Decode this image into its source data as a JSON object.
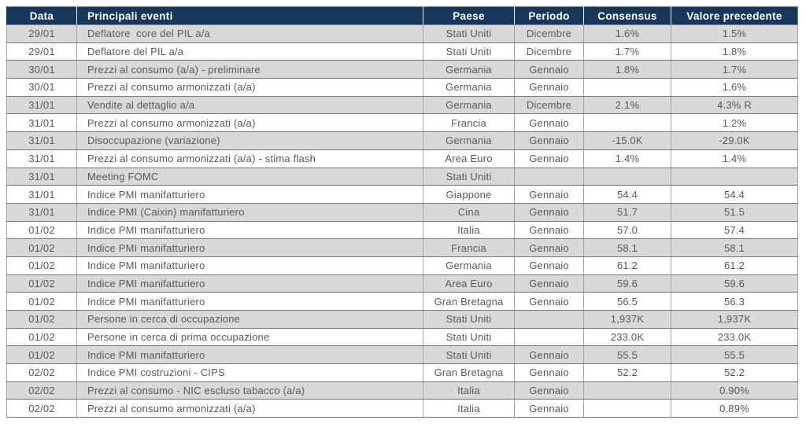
{
  "colors": {
    "header_bg": "#17375D",
    "header_text": "#FFFFFF",
    "row_alt_bg": "#D9D9D9",
    "row_bg": "#FFFFFF",
    "body_text": "#595959",
    "border": "#808080"
  },
  "table": {
    "columns": [
      {
        "key": "data",
        "label": "Data"
      },
      {
        "key": "evento",
        "label": "Principali eventi"
      },
      {
        "key": "paese",
        "label": "Paese"
      },
      {
        "key": "periodo",
        "label": "Periodo"
      },
      {
        "key": "consensus",
        "label": "Consensus"
      },
      {
        "key": "valore",
        "label": "Valore precedente"
      }
    ],
    "rows": [
      [
        "29/01",
        "Deflatore  core del PIL a/a",
        "Stati Uniti",
        "Dicembre",
        "1.6%",
        "1.5%"
      ],
      [
        "29/01",
        "Deflatore del PIL a/a",
        "Stati Uniti",
        "Dicembre",
        "1.7%",
        "1.8%"
      ],
      [
        "30/01",
        "Prezzi al consumo (a/a) - preliminare",
        "Germania",
        "Gennaio",
        "1.8%",
        "1.7%"
      ],
      [
        "30/01",
        "Prezzi al consumo armonizzati (a/a)",
        "Germania",
        "Gennaio",
        "",
        "1.6%"
      ],
      [
        "31/01",
        "Vendite al dettaglio a/a",
        "Germania",
        "Dicembre",
        "2.1%",
        "4.3% R"
      ],
      [
        "31/01",
        "Prezzi al consumo armonizzati (a/a)",
        "Francia",
        "Gennaio",
        "",
        "1.2%"
      ],
      [
        "31/01",
        "Disoccupazione (variazione)",
        "Germania",
        "Gennaio",
        "-15.0K",
        "-29.0K"
      ],
      [
        "31/01",
        "Prezzi al consumo armonizzati (a/a) - stima flash",
        "Area Euro",
        "Gennaio",
        "1.4%",
        "1.4%"
      ],
      [
        "31/01",
        "Meeting FOMC",
        "Stati Uniti",
        "",
        "",
        ""
      ],
      [
        "31/01",
        "Indice PMI manifatturiero",
        "Giappone",
        "Gennaio",
        "54.4",
        "54.4"
      ],
      [
        "31/01",
        "Indice PMI (Caixin) manifatturiero",
        "Cina",
        "Gennaio",
        "51.7",
        "51.5"
      ],
      [
        "01/02",
        "Indice PMI manifatturiero",
        "Italia",
        "Gennaio",
        "57.0",
        "57.4"
      ],
      [
        "01/02",
        "Indice PMI manifatturiero",
        "Francia",
        "Gennaio",
        "58.1",
        "58.1"
      ],
      [
        "01/02",
        "Indice PMI manifatturiero",
        "Germania",
        "Gennaio",
        "61.2",
        "61.2"
      ],
      [
        "01/02",
        "Indice PMI manifatturiero",
        "Area Euro",
        "Gennaio",
        "59.6",
        "59.6"
      ],
      [
        "01/02",
        "Indice PMI manifatturiero",
        "Gran Bretagna",
        "Gennaio",
        "56.5",
        "56.3"
      ],
      [
        "01/02",
        "Persone in cerca di occupazione",
        "Stati Uniti",
        "",
        "1,937K",
        "1,937K"
      ],
      [
        "01/02",
        "Persone in cerca di prima occupazione",
        "Stati Uniti",
        "",
        "233.0K",
        "233.0K"
      ],
      [
        "01/02",
        "Indice PMI manifatturiero",
        "Stati Uniti",
        "Gennaio",
        "55.5",
        "55.5"
      ],
      [
        "02/02",
        "Indice PMI costruzioni - CIPS",
        "Gran Bretagna",
        "Gennaio",
        "52.2",
        "52.2"
      ],
      [
        "02/02",
        "Prezzi al consumo - NIC escluso tabacco (a/a)",
        "Italia",
        "Gennaio",
        "",
        "0.90%"
      ],
      [
        "02/02",
        "Prezzi al consumo armonizzati (a/a)",
        "Italia",
        "Gennaio",
        "",
        "0.89%"
      ]
    ]
  }
}
